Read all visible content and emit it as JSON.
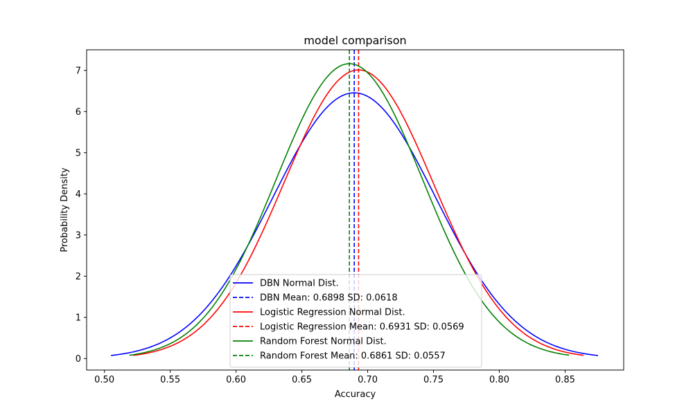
{
  "chart_data": {
    "type": "line",
    "title": "model comparison",
    "xlabel": "Accuracy",
    "ylabel": "Probability Density",
    "xlim": [
      0.4865,
      0.8945
    ],
    "ylim": [
      -0.28,
      7.5
    ],
    "x_ticks": [
      "0.50",
      "0.55",
      "0.60",
      "0.65",
      "0.70",
      "0.75",
      "0.80",
      "0.85"
    ],
    "y_ticks": [
      "0",
      "1",
      "2",
      "3",
      "4",
      "5",
      "6",
      "7"
    ],
    "grid": false,
    "legend_position": "lower center",
    "series": [
      {
        "name": "DBN Normal Dist.",
        "kind": "normal-curve",
        "mean": 0.6898,
        "sd": 0.0618,
        "x_range": [
          0.505,
          0.875
        ],
        "color": "#0000ff",
        "style": "solid"
      },
      {
        "name": "DBN Mean: 0.6898 SD: 0.0618",
        "kind": "vline",
        "x": 0.6898,
        "color": "#0000ff",
        "style": "dashed"
      },
      {
        "name": "Logistic Regression Normal Dist.",
        "kind": "normal-curve",
        "mean": 0.6931,
        "sd": 0.0569,
        "x_range": [
          0.522,
          0.864
        ],
        "color": "#ff0000",
        "style": "solid"
      },
      {
        "name": "Logistic Regression Mean: 0.6931 SD: 0.0569",
        "kind": "vline",
        "x": 0.6931,
        "color": "#ff0000",
        "style": "dashed"
      },
      {
        "name": "Random Forest Normal Dist.",
        "kind": "normal-curve",
        "mean": 0.6861,
        "sd": 0.0557,
        "x_range": [
          0.519,
          0.853
        ],
        "color": "#008000",
        "style": "solid"
      },
      {
        "name": "Random Forest Mean: 0.6861 SD: 0.0557",
        "kind": "vline",
        "x": 0.6861,
        "color": "#008000",
        "style": "dashed"
      }
    ]
  }
}
